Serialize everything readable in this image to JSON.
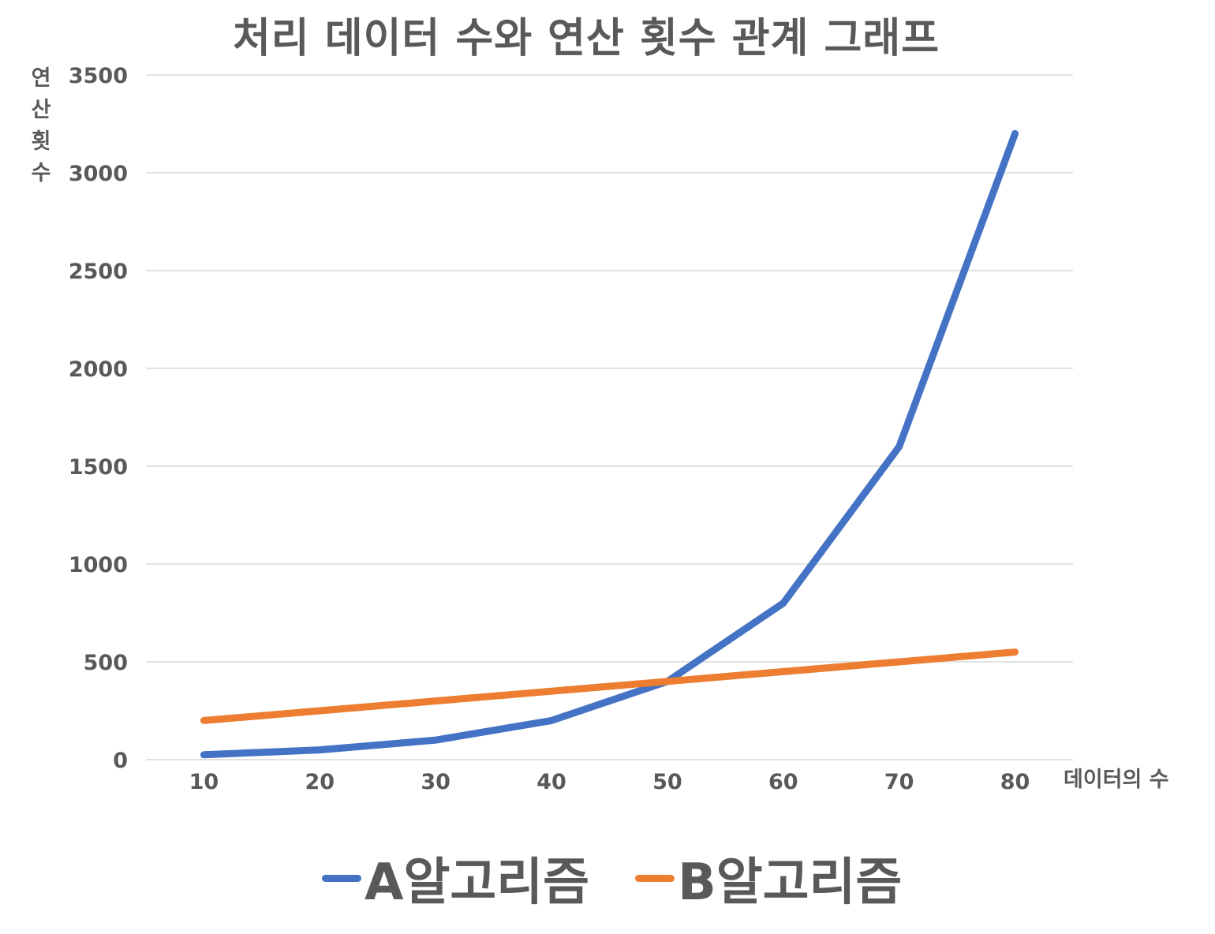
{
  "colors": {
    "series_a": "#4472C4",
    "series_b": "#ED7D31",
    "grid": "#D9D9D9",
    "text": "#595959"
  },
  "chart_data": {
    "type": "line",
    "title": "처리 데이터 수와 연산 횟수 관계 그래프",
    "xlabel": "데이터의 수",
    "ylabel": "연산 횟수",
    "x": [
      10,
      20,
      30,
      40,
      50,
      60,
      70,
      80
    ],
    "ylim": [
      0,
      3500
    ],
    "yticks": [
      0,
      500,
      1000,
      1500,
      2000,
      2500,
      3000,
      3500
    ],
    "grid": true,
    "legend": "bottom",
    "series": [
      {
        "name": "A알고리즘",
        "values": [
          25,
          50,
          100,
          200,
          400,
          800,
          1600,
          3200
        ]
      },
      {
        "name": "B알고리즘",
        "values": [
          200,
          250,
          300,
          350,
          400,
          450,
          500,
          550
        ]
      }
    ]
  }
}
